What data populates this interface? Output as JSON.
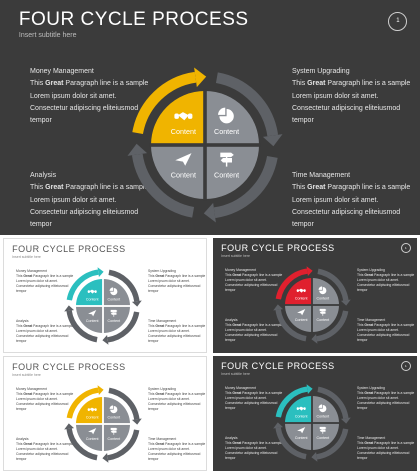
{
  "slides": [
    {
      "id": "main",
      "theme": "dark",
      "accent": "#f0b400",
      "title": "FOUR CYCLE PROCESS",
      "subtitle": "Insert subtitle here",
      "page": "1",
      "blocks": {
        "money": {
          "title": "Money Management",
          "line1": "This ",
          "bold": "Great",
          "line1b": " Paragraph  line  is  a sample",
          "line2": "Lorem ipsum  dolor  sit amet.",
          "line3": "Consectetur  adipiscing  eliteiusmod",
          "line4": "tempor"
        },
        "system": {
          "title": "System Upgrading",
          "line1": "This ",
          "bold": "Great",
          "line1b": " Paragraph  line  is  a sample",
          "line2": "Lorem ipsum  dolor  sit amet.",
          "line3": "Consectetur  adipiscing  eliteiusmod",
          "line4": "tempor"
        },
        "analysis": {
          "title": "Analysis",
          "line1": "This ",
          "bold": "Great",
          "line1b": " Paragraph  line  is  a sample",
          "line2": "Lorem ipsum  dolor  sit amet.",
          "line3": "Consectetur  adipiscing  eliteiusmod",
          "line4": "tempor"
        },
        "time": {
          "title": "Time Management",
          "line1": "This ",
          "bold": "Great",
          "line1b": " Paragraph  line  is  a sample",
          "line2": "Lorem ipsum  dolor  sit amet.",
          "line3": "Consectetur  adipiscing  eliteiusmod",
          "line4": "tempor"
        }
      },
      "quadrants": {
        "tl": "Content",
        "tr": "Content",
        "bl": "Content",
        "br": "Content"
      },
      "icons": {
        "tl": "handshake-icon",
        "tr": "pie-chart-icon",
        "bl": "paper-plane-icon",
        "br": "signpost-icon"
      }
    },
    {
      "id": "teal-light",
      "theme": "light",
      "accent": "#2bbfbf",
      "title": "FOUR CYCLE PROCESS",
      "subtitle": "Insert subtitle here",
      "page": "",
      "blocks": {
        "money": {
          "title": "Money Management",
          "line1": "This ",
          "bold": "Great",
          "line1b": " Paragraph  line  is  a sample",
          "line2": "Lorem ipsum  dolor  sit amet.",
          "line3": "Consectetur  adipiscing  eliteiusmod",
          "line4": "tempor"
        },
        "system": {
          "title": "System Upgrading",
          "line1": "This ",
          "bold": "Great",
          "line1b": " Paragraph  line  is  a sample",
          "line2": "Lorem ipsum  dolor  sit amet.",
          "line3": "Consectetur  adipiscing  eliteiusmod",
          "line4": "tempor"
        },
        "analysis": {
          "title": "Analysis",
          "line1": "This ",
          "bold": "Great",
          "line1b": " Paragraph  line  is  a sample",
          "line2": "Lorem ipsum  dolor  sit amet.",
          "line3": "Consectetur  adipiscing  eliteiusmod",
          "line4": "tempor"
        },
        "time": {
          "title": "Time Management",
          "line1": "This ",
          "bold": "Great",
          "line1b": " Paragraph  line  is  a sample",
          "line2": "Lorem ipsum  dolor  sit amet.",
          "line3": "Consectetur  adipiscing  eliteiusmod",
          "line4": "tempor"
        }
      },
      "quadrants": {
        "tl": "Content",
        "tr": "Content",
        "bl": "Content",
        "br": "Content"
      },
      "icons": {
        "tl": "handshake-icon",
        "tr": "pie-chart-icon",
        "bl": "paper-plane-icon",
        "br": "signpost-icon"
      }
    },
    {
      "id": "red-dark",
      "theme": "dark",
      "accent": "#e0202e",
      "title": "FOUR CYCLE PROCESS",
      "subtitle": "Insert subtitle here",
      "page": "1",
      "blocks": {
        "money": {
          "title": "Money Management",
          "line1": "This ",
          "bold": "Great",
          "line1b": " Paragraph  line  is  a sample",
          "line2": "Lorem ipsum  dolor  sit amet.",
          "line3": "Consectetur  adipiscing  eliteiusmod",
          "line4": "tempor"
        },
        "system": {
          "title": "System Upgrading",
          "line1": "This ",
          "bold": "Great",
          "line1b": " Paragraph  line  is  a sample",
          "line2": "Lorem ipsum  dolor  sit amet.",
          "line3": "Consectetur  adipiscing  eliteiusmod",
          "line4": "tempor"
        },
        "analysis": {
          "title": "Analysis",
          "line1": "This ",
          "bold": "Great",
          "line1b": " Paragraph  line  is  a sample",
          "line2": "Lorem ipsum  dolor  sit amet.",
          "line3": "Consectetur  adipiscing  eliteiusmod",
          "line4": "tempor"
        },
        "time": {
          "title": "Time Management",
          "line1": "This ",
          "bold": "Great",
          "line1b": " Paragraph  line  is  a sample",
          "line2": "Lorem ipsum  dolor  sit amet.",
          "line3": "Consectetur  adipiscing  eliteiusmod",
          "line4": "tempor"
        }
      },
      "quadrants": {
        "tl": "Content",
        "tr": "Content",
        "bl": "Content",
        "br": "Content"
      },
      "icons": {
        "tl": "handshake-icon",
        "tr": "pie-chart-icon",
        "bl": "paper-plane-icon",
        "br": "signpost-icon"
      }
    },
    {
      "id": "gold-light",
      "theme": "light",
      "accent": "#f0b400",
      "title": "FOUR CYCLE PROCESS",
      "subtitle": "Insert subtitle here",
      "page": "",
      "blocks": {
        "money": {
          "title": "Money Management",
          "line1": "This ",
          "bold": "Great",
          "line1b": " Paragraph  line  is  a sample",
          "line2": "Lorem ipsum  dolor  sit amet.",
          "line3": "Consectetur  adipiscing  eliteiusmod",
          "line4": "tempor"
        },
        "system": {
          "title": "System Upgrading",
          "line1": "This ",
          "bold": "Great",
          "line1b": " Paragraph  line  is  a sample",
          "line2": "Lorem ipsum  dolor  sit amet.",
          "line3": "Consectetur  adipiscing  eliteiusmod",
          "line4": "tempor"
        },
        "analysis": {
          "title": "Analysis",
          "line1": "This ",
          "bold": "Great",
          "line1b": " Paragraph  line  is  a sample",
          "line2": "Lorem ipsum  dolor  sit amet.",
          "line3": "Consectetur  adipiscing  eliteiusmod",
          "line4": "tempor"
        },
        "time": {
          "title": "Time Management",
          "line1": "This ",
          "bold": "Great",
          "line1b": " Paragraph  line  is  a sample",
          "line2": "Lorem ipsum  dolor  sit amet.",
          "line3": "Consectetur  adipiscing  eliteiusmod",
          "line4": "tempor"
        }
      },
      "quadrants": {
        "tl": "Content",
        "tr": "Content",
        "bl": "Content",
        "br": "Content"
      },
      "icons": {
        "tl": "handshake-icon",
        "tr": "pie-chart-icon",
        "bl": "paper-plane-icon",
        "br": "signpost-icon"
      }
    },
    {
      "id": "teal-dark",
      "theme": "dark",
      "accent": "#2bbfbf",
      "title": "FOUR CYCLE PROCESS",
      "subtitle": "Insert subtitle here",
      "page": "1",
      "blocks": {
        "money": {
          "title": "Money Management",
          "line1": "This ",
          "bold": "Great",
          "line1b": " Paragraph  line  is  a sample",
          "line2": "Lorem ipsum  dolor  sit amet.",
          "line3": "Consectetur  adipiscing  eliteiusmod",
          "line4": "tempor"
        },
        "system": {
          "title": "System Upgrading",
          "line1": "This ",
          "bold": "Great",
          "line1b": " Paragraph  line  is  a sample",
          "line2": "Lorem ipsum  dolor  sit amet.",
          "line3": "Consectetur  adipiscing  eliteiusmod",
          "line4": "tempor"
        },
        "analysis": {
          "title": "Analysis",
          "line1": "This ",
          "bold": "Great",
          "line1b": " Paragraph  line  is  a sample",
          "line2": "Lorem ipsum  dolor  sit amet.",
          "line3": "Consectetur  adipiscing  eliteiusmod",
          "line4": "tempor"
        },
        "time": {
          "title": "Time Management",
          "line1": "This ",
          "bold": "Great",
          "line1b": " Paragraph  line  is  a sample",
          "line2": "Lorem ipsum  dolor  sit amet.",
          "line3": "Consectetur  adipiscing  eliteiusmod",
          "line4": "tempor"
        }
      },
      "quadrants": {
        "tl": "Content",
        "tr": "Content",
        "bl": "Content",
        "br": "Content"
      },
      "icons": {
        "tl": "handshake-icon",
        "tr": "pie-chart-icon",
        "bl": "paper-plane-icon",
        "br": "signpost-icon"
      }
    }
  ],
  "colors": {
    "quadrant_gray": "#8a8e94",
    "ring_gray": "#5e6166",
    "gap_dark": "#3b3b3b",
    "gap_light": "#ffffff"
  }
}
